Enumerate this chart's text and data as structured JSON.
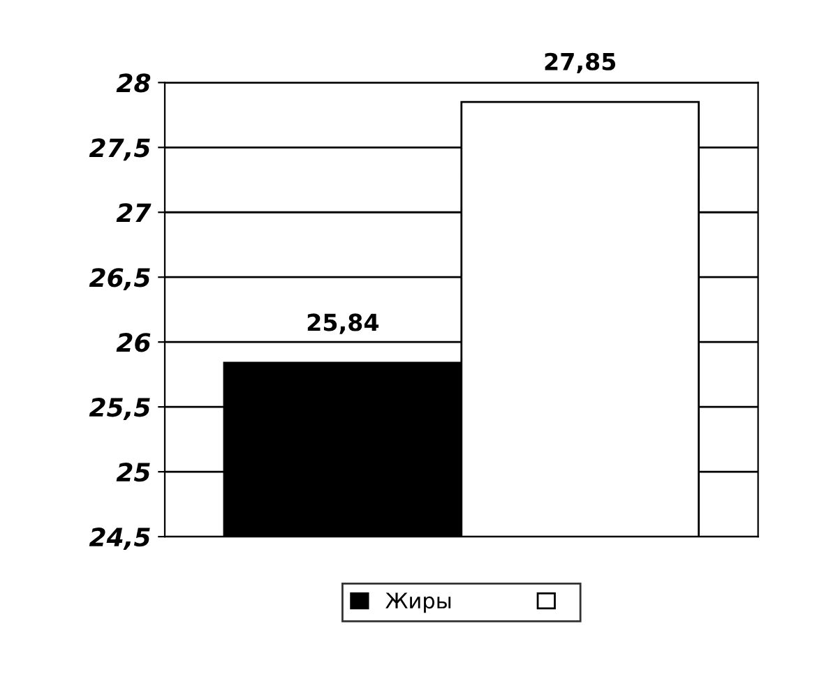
{
  "chart_data": {
    "type": "bar",
    "categories": [
      null
    ],
    "series": [
      {
        "name": "Жиры",
        "color": "#000000",
        "values": [
          25.84
        ],
        "value_labels": [
          "25,84"
        ]
      },
      {
        "color": "#ffffff",
        "values": [
          27.85
        ],
        "value_labels": [
          "27,85"
        ]
      }
    ],
    "ylim": [
      24.5,
      28
    ],
    "yticks": [
      {
        "value": 24.5,
        "label": "24,5"
      },
      25,
      {
        "value": 25.5,
        "label": "25,5"
      },
      26,
      {
        "value": 26.5,
        "label": "26,5"
      },
      27,
      {
        "value": 27.5,
        "label": "27,5"
      },
      28
    ],
    "grid": "y",
    "legend": "bottom"
  }
}
